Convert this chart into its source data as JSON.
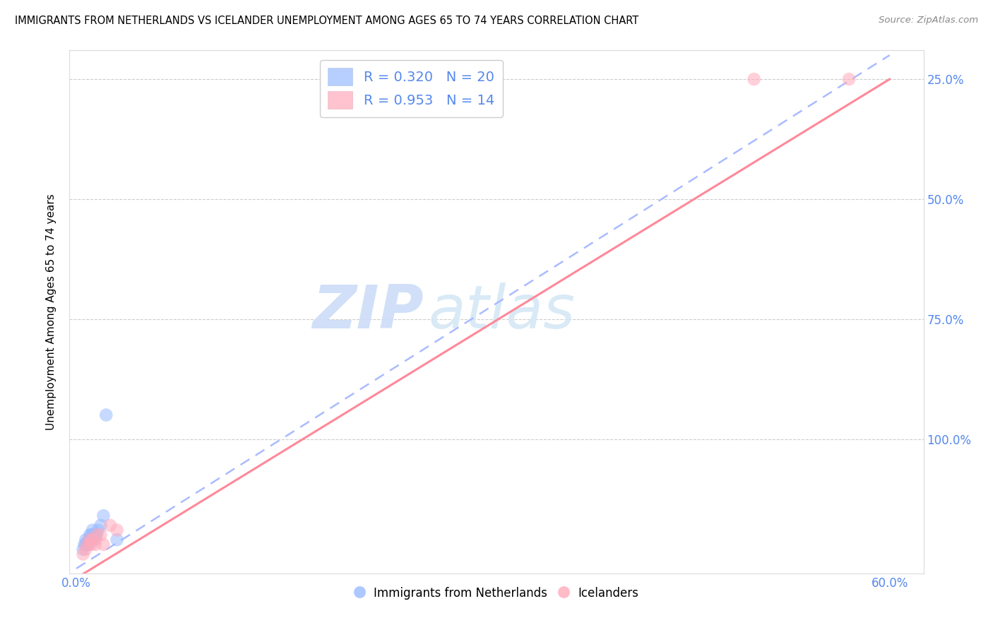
{
  "title": "IMMIGRANTS FROM NETHERLANDS VS ICELANDER UNEMPLOYMENT AMONG AGES 65 TO 74 YEARS CORRELATION CHART",
  "source": "Source: ZipAtlas.com",
  "ylabel": "Unemployment Among Ages 65 to 74 years",
  "y_tick_labels_right": [
    "100.0%",
    "75.0%",
    "50.0%",
    "25.0%"
  ],
  "legend_label1": "R = 0.320   N = 20",
  "legend_label2": "R = 0.953   N = 14",
  "legend_bottom_label1": "Immigrants from Netherlands",
  "legend_bottom_label2": "Icelanders",
  "color_blue": "#99BBFF",
  "color_pink": "#FFAABB",
  "color_blue_line": "#AABBFF",
  "color_pink_line": "#FF8899",
  "watermark_zip": "ZIP",
  "watermark_atlas": "atlas",
  "background_color": "#FFFFFF",
  "grid_color": "#CCCCCC",
  "blue_points_x": [
    0.005,
    0.006,
    0.007,
    0.007,
    0.008,
    0.009,
    0.009,
    0.01,
    0.01,
    0.011,
    0.012,
    0.012,
    0.013,
    0.014,
    0.015,
    0.016,
    0.018,
    0.02,
    0.022,
    0.03
  ],
  "blue_points_y": [
    0.02,
    0.03,
    0.03,
    0.04,
    0.03,
    0.03,
    0.04,
    0.04,
    0.05,
    0.05,
    0.04,
    0.06,
    0.05,
    0.04,
    0.05,
    0.06,
    0.07,
    0.09,
    0.3,
    0.04
  ],
  "blue_line_x0": 0.0,
  "blue_line_y0": -0.02,
  "blue_line_x1": 0.6,
  "blue_line_y1": 1.05,
  "pink_points_x": [
    0.005,
    0.007,
    0.008,
    0.01,
    0.011,
    0.012,
    0.014,
    0.015,
    0.018,
    0.02,
    0.025,
    0.03,
    0.5,
    0.57
  ],
  "pink_points_y": [
    0.01,
    0.02,
    0.03,
    0.04,
    0.03,
    0.04,
    0.03,
    0.05,
    0.05,
    0.03,
    0.07,
    0.06,
    1.0,
    1.0
  ],
  "pink_line_x0": 0.0,
  "pink_line_y0": -0.04,
  "pink_line_x1": 0.6,
  "pink_line_y1": 1.0,
  "xlim_min": -0.005,
  "xlim_max": 0.625,
  "ylim_min": -0.03,
  "ylim_max": 1.06
}
